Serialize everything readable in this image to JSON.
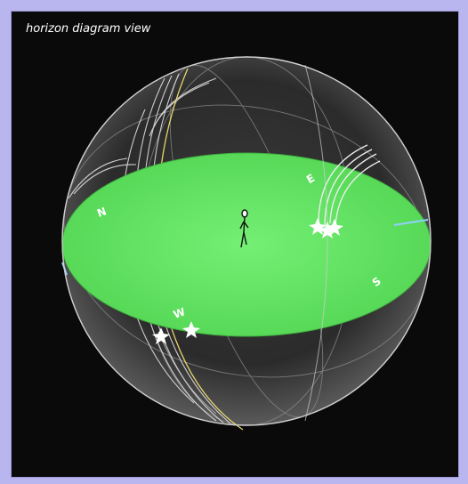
{
  "view": {
    "title": "horizon diagram view"
  },
  "compass": {
    "north": "N",
    "east": "E",
    "south": "S",
    "west": "W"
  },
  "colors": {
    "background": "#0a0a0a",
    "border": "#b9b6ef",
    "horizon_plane": "#5be35b",
    "sphere": "#ffffff",
    "star_trail": "#e8e8e8",
    "ecliptic_trail": "#e6d66a",
    "meridian_marker": "#8fd0ff"
  },
  "icons": {
    "observer": "stick-figure-icon",
    "star": "star-icon"
  }
}
